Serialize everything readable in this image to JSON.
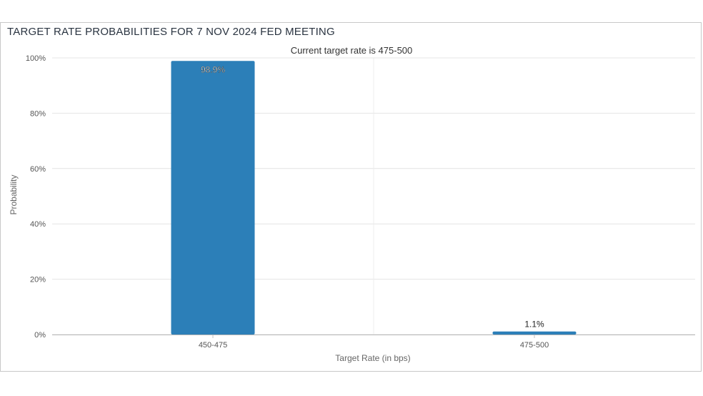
{
  "chart_data": {
    "type": "bar",
    "title": "TARGET RATE PROBABILITIES FOR 7 NOV 2024 FED MEETING",
    "subtitle": "Current target rate is 475-500",
    "xlabel": "Target Rate (in bps)",
    "ylabel": "Probability",
    "categories": [
      "450-475",
      "475-500"
    ],
    "values": [
      98.9,
      1.1
    ],
    "data_labels": [
      "98.9%",
      "1.1%"
    ],
    "ylim": [
      0,
      100
    ],
    "yticks": [
      0,
      20,
      40,
      60,
      80,
      100
    ],
    "ytick_labels": [
      "0%",
      "20%",
      "40%",
      "60%",
      "80%",
      "100%"
    ],
    "grid": true,
    "legend": "none",
    "bar_color": "#2c7fb8",
    "label_inside_color": "#ffffff",
    "label_outside_color": "#222222"
  }
}
